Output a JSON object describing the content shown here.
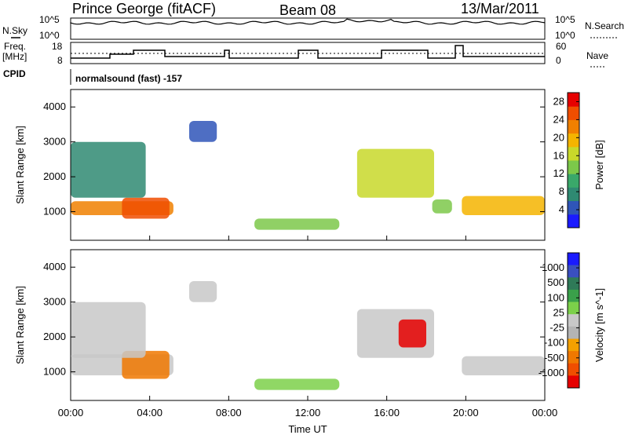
{
  "header": {
    "station": "Prince George (fitACF)",
    "beam": "Beam 08",
    "date": "13/Mar/2011"
  },
  "top_panels": {
    "nsky_label": "N.Sky",
    "nsky_ticks": [
      "10^5",
      "10^0"
    ],
    "nsearch_label": "N.Search",
    "nsearch_ticks": [
      "10^5",
      "10^0"
    ],
    "freq_label": "Freq.",
    "freq_unit": "[MHz]",
    "freq_ticks": [
      "18",
      "8"
    ],
    "nave_label": "Nave",
    "nave_ticks": [
      "60",
      "0"
    ],
    "cpid_label": "CPID",
    "cpid_text": "normalsound (fast) -157"
  },
  "colors": {
    "power_scale": [
      "#1a1aff",
      "#2f55b8",
      "#2f8a72",
      "#3aa86a",
      "#7cc84a",
      "#c8d82a",
      "#f4b400",
      "#f08000",
      "#f04e00",
      "#e60000"
    ],
    "velocity_scale": [
      "#1a1aff",
      "#3a4fc0",
      "#2f7a58",
      "#3aa04a",
      "#7cd04a",
      "#c8c8c8",
      "#b4b4b4",
      "#f4a000",
      "#f07800",
      "#f04e00",
      "#e60000"
    ]
  },
  "chart_data": [
    {
      "type": "heatmap",
      "title": "Power",
      "ylabel": "Slant Range [km]",
      "xlabel": "Time UT",
      "y_ticks": [
        "1000",
        "2000",
        "3000",
        "4000"
      ],
      "x_ticks": [
        "00:00",
        "04:00",
        "08:00",
        "12:00",
        "16:00",
        "20:00",
        "00:00"
      ],
      "ylim": [
        180,
        4500
      ],
      "xlim": [
        0,
        24
      ],
      "colorbar_label": "Power [dB]",
      "colorbar_ticks": [
        "4",
        "8",
        "12",
        "16",
        "20",
        "24",
        "28"
      ],
      "colorbar_range": [
        0,
        30
      ],
      "echo_regions": [
        {
          "t": [
            0.0,
            5.2
          ],
          "r": [
            900,
            1300
          ],
          "level": 22
        },
        {
          "t": [
            2.6,
            5.0
          ],
          "r": [
            800,
            1400
          ],
          "level": 28
        },
        {
          "t": [
            0.0,
            3.8
          ],
          "r": [
            1400,
            3000
          ],
          "level": 6
        },
        {
          "t": [
            6.0,
            7.4
          ],
          "r": [
            3000,
            3600
          ],
          "level": 4
        },
        {
          "t": [
            9.3,
            13.6
          ],
          "r": [
            480,
            800
          ],
          "level": 14
        },
        {
          "t": [
            14.5,
            18.4
          ],
          "r": [
            1400,
            2800
          ],
          "level": 16
        },
        {
          "t": [
            18.3,
            19.3
          ],
          "r": [
            950,
            1350
          ],
          "level": 14
        },
        {
          "t": [
            19.8,
            24.0
          ],
          "r": [
            900,
            1450
          ],
          "level": 20
        }
      ]
    },
    {
      "type": "heatmap",
      "title": "Velocity",
      "ylabel": "Slant Range [km]",
      "xlabel": "Time UT",
      "y_ticks": [
        "1000",
        "2000",
        "3000",
        "4000"
      ],
      "x_ticks": [
        "00:00",
        "04:00",
        "08:00",
        "12:00",
        "16:00",
        "20:00",
        "00:00"
      ],
      "ylim": [
        180,
        4500
      ],
      "xlim": [
        0,
        24
      ],
      "colorbar_label": "Velocity [m s^-1]",
      "colorbar_ticks": [
        "1000",
        "500",
        "100",
        "25",
        "-25",
        "-100",
        "-500",
        "-1000"
      ],
      "echo_regions": [
        {
          "t": [
            0.0,
            5.2
          ],
          "r": [
            900,
            1500
          ],
          "velocity": 0
        },
        {
          "t": [
            2.6,
            5.0
          ],
          "r": [
            800,
            1600
          ],
          "velocity": -150
        },
        {
          "t": [
            0.0,
            3.8
          ],
          "r": [
            1400,
            3000
          ],
          "velocity": 0
        },
        {
          "t": [
            6.0,
            7.4
          ],
          "r": [
            3000,
            3600
          ],
          "velocity": 0
        },
        {
          "t": [
            9.3,
            13.6
          ],
          "r": [
            480,
            800
          ],
          "velocity": 80
        },
        {
          "t": [
            14.5,
            18.4
          ],
          "r": [
            1400,
            2800
          ],
          "velocity": 0
        },
        {
          "t": [
            16.6,
            18.0
          ],
          "r": [
            1700,
            2500
          ],
          "velocity": -800
        },
        {
          "t": [
            19.8,
            24.0
          ],
          "r": [
            900,
            1450
          ],
          "velocity": 0
        }
      ]
    }
  ]
}
